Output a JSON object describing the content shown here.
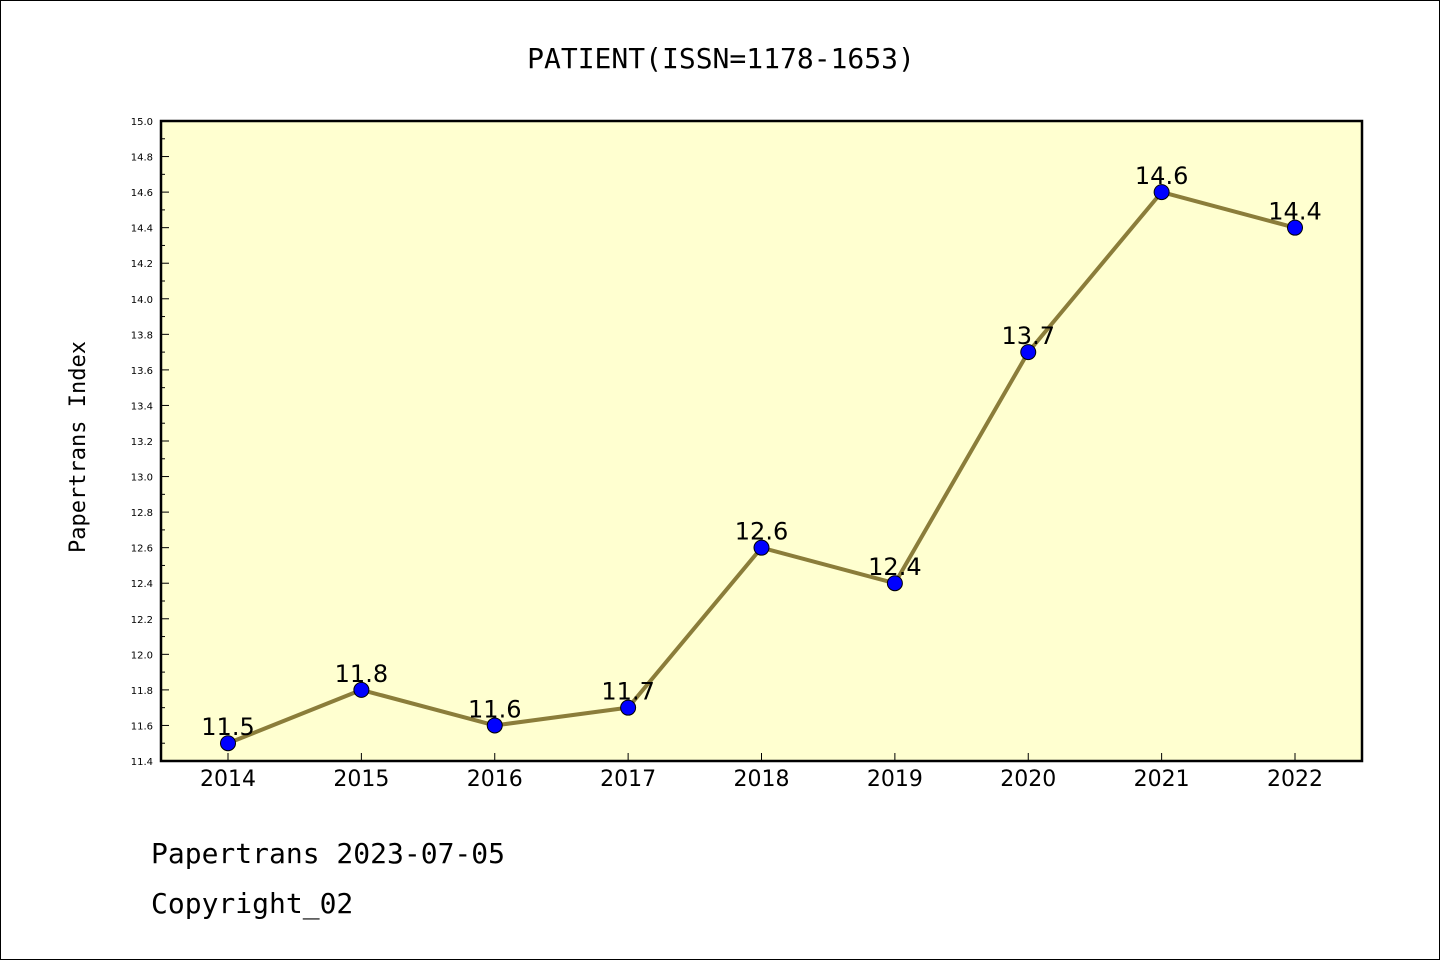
{
  "chart_data": {
    "type": "line",
    "title": "PATIENT(ISSN=1178-1653)",
    "xlabel": "",
    "ylabel": "Papertrans Index",
    "categories": [
      "2014",
      "2015",
      "2016",
      "2017",
      "2018",
      "2019",
      "2020",
      "2021",
      "2022"
    ],
    "values": [
      11.5,
      11.8,
      11.6,
      11.7,
      12.6,
      12.4,
      13.7,
      14.6,
      14.4
    ],
    "data_labels": [
      "11.5",
      "11.8",
      "11.6",
      "11.7",
      "12.6",
      "12.4",
      "13.7",
      "14.6",
      "14.4"
    ],
    "ylim": [
      11.4,
      15.0
    ],
    "yticks": [
      "11.4",
      "11.6",
      "11.8",
      "12.0",
      "12.2",
      "12.4",
      "12.6",
      "12.8",
      "13.0",
      "13.2",
      "13.4",
      "13.6",
      "13.8",
      "14.0",
      "14.2",
      "14.4",
      "14.6",
      "14.8",
      "15.0"
    ],
    "grid": false,
    "colors": {
      "plot_background": "#FFFFD0",
      "line": "#8B7D3A",
      "marker": "#0000FF"
    }
  },
  "footer": {
    "line1": "Papertrans 2023-07-05",
    "line2": "Copyright_02"
  }
}
